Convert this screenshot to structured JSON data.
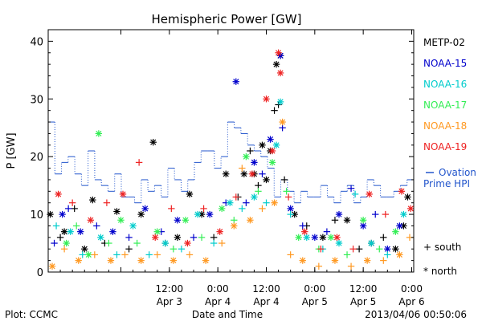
{
  "chart_data": {
    "type": "scatter",
    "title": "Hemispheric Power [GW]",
    "xlabel": "Date and Time",
    "ylabel": "P [GW]",
    "x_range": [
      "2013-04-02 06:00",
      "2013-04-06 00:30"
    ],
    "ylim": [
      0,
      42
    ],
    "y_ticks": [
      0,
      10,
      20,
      30,
      40
    ],
    "x_ticks": [
      {
        "t": "2013-04-03 00:00",
        "label": ""
      },
      {
        "t": "2013-04-03 12:00",
        "label": "12:00",
        "sub": "Apr 3"
      },
      {
        "t": "2013-04-04 00:00",
        "label": "0:00",
        "sub": "Apr 4"
      },
      {
        "t": "2013-04-04 12:00",
        "label": "12:00",
        "sub": "Apr 4"
      },
      {
        "t": "2013-04-05 00:00",
        "label": "0:00",
        "sub": "Apr 5"
      },
      {
        "t": "2013-04-05 12:00",
        "label": "12:00",
        "sub": "Apr 5"
      },
      {
        "t": "2013-04-06 00:00",
        "label": "0:00",
        "sub": "Apr 6"
      }
    ],
    "grid": false,
    "legend_position": "right",
    "series": [
      {
        "name": "METP-02",
        "color": "#000000",
        "points": [
          [
            "2013-04-02 06:30",
            10,
            "north"
          ],
          [
            "2013-04-02 09:00",
            6,
            "south"
          ],
          [
            "2013-04-02 10:00",
            7,
            "north"
          ],
          [
            "2013-04-02 12:30",
            11,
            "south"
          ],
          [
            "2013-04-02 15:00",
            4,
            "north"
          ],
          [
            "2013-04-02 17:00",
            12.5,
            "north"
          ],
          [
            "2013-04-02 20:00",
            5,
            "south"
          ],
          [
            "2013-04-02 23:00",
            10.5,
            "north"
          ],
          [
            "2013-04-03 02:00",
            4,
            "south"
          ],
          [
            "2013-04-03 05:00",
            10,
            "north"
          ],
          [
            "2013-04-03 08:00",
            22.5,
            "north"
          ],
          [
            "2013-04-03 11:00",
            5,
            "south"
          ],
          [
            "2013-04-03 14:00",
            6,
            "north"
          ],
          [
            "2013-04-03 17:00",
            13.5,
            "north"
          ],
          [
            "2013-04-03 20:00",
            10,
            "north"
          ],
          [
            "2013-04-03 23:00",
            6,
            "south"
          ],
          [
            "2013-04-04 02:00",
            17,
            "north"
          ],
          [
            "2013-04-04 05:00",
            13,
            "south"
          ],
          [
            "2013-04-04 06:30",
            17,
            "north"
          ],
          [
            "2013-04-04 08:00",
            21,
            "south"
          ],
          [
            "2013-04-04 09:00",
            17,
            "north"
          ],
          [
            "2013-04-04 10:00",
            15,
            "south"
          ],
          [
            "2013-04-04 11:00",
            22,
            "north"
          ],
          [
            "2013-04-04 12:00",
            16,
            "north"
          ],
          [
            "2013-04-04 13:00",
            21,
            "north"
          ],
          [
            "2013-04-04 14:00",
            28,
            "south"
          ],
          [
            "2013-04-04 14:30",
            36,
            "north"
          ],
          [
            "2013-04-04 15:00",
            29,
            "south"
          ],
          [
            "2013-04-04 15:30",
            37.5,
            "north"
          ],
          [
            "2013-04-04 16:30",
            16,
            "south"
          ],
          [
            "2013-04-04 19:00",
            10,
            "north"
          ],
          [
            "2013-04-04 22:00",
            8,
            "south"
          ],
          [
            "2013-04-05 02:00",
            6,
            "north"
          ],
          [
            "2013-04-05 05:00",
            9,
            "south"
          ],
          [
            "2013-04-05 08:00",
            9,
            "north"
          ],
          [
            "2013-04-05 11:00",
            4,
            "south"
          ],
          [
            "2013-04-05 14:00",
            5,
            "north"
          ],
          [
            "2013-04-05 17:00",
            6,
            "south"
          ],
          [
            "2013-04-05 20:00",
            4,
            "north"
          ],
          [
            "2013-04-05 22:00",
            8,
            "north"
          ],
          [
            "2013-04-05 23:00",
            13,
            "north"
          ]
        ]
      },
      {
        "name": "NOAA-15",
        "color": "#0000cc",
        "points": [
          [
            "2013-04-02 07:30",
            5,
            "south"
          ],
          [
            "2013-04-02 09:30",
            10,
            "north"
          ],
          [
            "2013-04-02 11:00",
            11,
            "south"
          ],
          [
            "2013-04-02 14:00",
            7,
            "north"
          ],
          [
            "2013-04-02 18:00",
            8,
            "south"
          ],
          [
            "2013-04-02 22:00",
            7,
            "north"
          ],
          [
            "2013-04-03 02:00",
            6,
            "south"
          ],
          [
            "2013-04-03 06:00",
            11,
            "north"
          ],
          [
            "2013-04-03 10:00",
            7,
            "south"
          ],
          [
            "2013-04-03 14:00",
            9,
            "north"
          ],
          [
            "2013-04-03 18:00",
            6,
            "south"
          ],
          [
            "2013-04-03 22:00",
            10,
            "north"
          ],
          [
            "2013-04-04 02:00",
            12,
            "south"
          ],
          [
            "2013-04-04 04:30",
            33,
            "north"
          ],
          [
            "2013-04-04 07:00",
            12,
            "south"
          ],
          [
            "2013-04-04 09:00",
            19,
            "north"
          ],
          [
            "2013-04-04 11:00",
            17,
            "south"
          ],
          [
            "2013-04-04 13:00",
            23,
            "north"
          ],
          [
            "2013-04-04 15:30",
            37.5,
            "north"
          ],
          [
            "2013-04-04 16:00",
            25,
            "south"
          ],
          [
            "2013-04-04 18:00",
            11,
            "north"
          ],
          [
            "2013-04-04 21:00",
            8,
            "south"
          ],
          [
            "2013-04-05 00:00",
            6,
            "north"
          ],
          [
            "2013-04-05 03:00",
            7,
            "south"
          ],
          [
            "2013-04-05 06:00",
            10,
            "north"
          ],
          [
            "2013-04-05 09:00",
            14.5,
            "south"
          ],
          [
            "2013-04-05 12:00",
            8,
            "north"
          ],
          [
            "2013-04-05 15:00",
            10,
            "south"
          ],
          [
            "2013-04-05 18:00",
            4,
            "north"
          ],
          [
            "2013-04-05 21:00",
            8,
            "north"
          ]
        ]
      },
      {
        "name": "NOAA-16",
        "color": "#00cccc",
        "points": [
          [
            "2013-04-02 08:00",
            8,
            "south"
          ],
          [
            "2013-04-02 11:30",
            7,
            "north"
          ],
          [
            "2013-04-02 14:30",
            3,
            "south"
          ],
          [
            "2013-04-02 19:00",
            6,
            "north"
          ],
          [
            "2013-04-02 23:00",
            3,
            "south"
          ],
          [
            "2013-04-03 03:00",
            8,
            "north"
          ],
          [
            "2013-04-03 07:00",
            3,
            "south"
          ],
          [
            "2013-04-03 11:00",
            5,
            "north"
          ],
          [
            "2013-04-03 15:00",
            4,
            "south"
          ],
          [
            "2013-04-03 19:00",
            10,
            "north"
          ],
          [
            "2013-04-03 23:00",
            5,
            "south"
          ],
          [
            "2013-04-04 03:00",
            12,
            "north"
          ],
          [
            "2013-04-04 06:00",
            11,
            "south"
          ],
          [
            "2013-04-04 09:00",
            13,
            "north"
          ],
          [
            "2013-04-04 12:00",
            12,
            "south"
          ],
          [
            "2013-04-04 14:30",
            22,
            "north"
          ],
          [
            "2013-04-04 15:30",
            29.5,
            "north"
          ],
          [
            "2013-04-04 18:00",
            10,
            "south"
          ],
          [
            "2013-04-04 22:00",
            6,
            "north"
          ],
          [
            "2013-04-05 02:00",
            4,
            "south"
          ],
          [
            "2013-04-05 06:00",
            5,
            "north"
          ],
          [
            "2013-04-05 10:00",
            13.5,
            "south"
          ],
          [
            "2013-04-05 14:00",
            5,
            "north"
          ],
          [
            "2013-04-05 18:00",
            3,
            "south"
          ],
          [
            "2013-04-05 22:00",
            10,
            "north"
          ]
        ]
      },
      {
        "name": "NOAA-17",
        "color": "#33ee55",
        "points": [
          [
            "2013-04-02 10:30",
            5,
            "north"
          ],
          [
            "2013-04-02 13:00",
            8,
            "south"
          ],
          [
            "2013-04-02 16:00",
            3,
            "north"
          ],
          [
            "2013-04-02 18:30",
            24,
            "north"
          ],
          [
            "2013-04-02 21:00",
            5,
            "south"
          ],
          [
            "2013-04-03 00:00",
            9,
            "north"
          ],
          [
            "2013-04-03 04:00",
            5,
            "south"
          ],
          [
            "2013-04-03 09:00",
            7,
            "north"
          ],
          [
            "2013-04-03 13:00",
            4,
            "south"
          ],
          [
            "2013-04-03 16:00",
            9,
            "north"
          ],
          [
            "2013-04-03 20:00",
            6,
            "south"
          ],
          [
            "2013-04-04 01:00",
            11,
            "north"
          ],
          [
            "2013-04-04 04:00",
            9,
            "south"
          ],
          [
            "2013-04-04 07:00",
            20,
            "north"
          ],
          [
            "2013-04-04 10:00",
            14,
            "south"
          ],
          [
            "2013-04-04 13:30",
            19,
            "north"
          ],
          [
            "2013-04-04 17:00",
            14,
            "south"
          ],
          [
            "2013-04-04 20:00",
            6,
            "north"
          ],
          [
            "2013-04-05 01:00",
            4,
            "south"
          ],
          [
            "2013-04-05 04:00",
            6,
            "north"
          ],
          [
            "2013-04-05 08:00",
            3,
            "south"
          ],
          [
            "2013-04-05 12:00",
            9,
            "north"
          ],
          [
            "2013-04-05 16:00",
            4,
            "south"
          ],
          [
            "2013-04-05 20:00",
            7,
            "north"
          ]
        ]
      },
      {
        "name": "NOAA-18",
        "color": "#ff9922",
        "points": [
          [
            "2013-04-02 07:00",
            1,
            "north"
          ],
          [
            "2013-04-02 10:00",
            4,
            "south"
          ],
          [
            "2013-04-02 13:30",
            2,
            "north"
          ],
          [
            "2013-04-02 17:30",
            3,
            "south"
          ],
          [
            "2013-04-02 21:30",
            2,
            "north"
          ],
          [
            "2013-04-03 01:00",
            3,
            "south"
          ],
          [
            "2013-04-03 05:00",
            2,
            "north"
          ],
          [
            "2013-04-03 09:00",
            3,
            "south"
          ],
          [
            "2013-04-03 13:00",
            2,
            "north"
          ],
          [
            "2013-04-03 17:00",
            3,
            "south"
          ],
          [
            "2013-04-03 21:00",
            2,
            "north"
          ],
          [
            "2013-04-04 01:00",
            5,
            "south"
          ],
          [
            "2013-04-04 04:00",
            8,
            "north"
          ],
          [
            "2013-04-04 06:00",
            18,
            "south"
          ],
          [
            "2013-04-04 08:00",
            9,
            "north"
          ],
          [
            "2013-04-04 11:00",
            11,
            "south"
          ],
          [
            "2013-04-04 14:00",
            12,
            "north"
          ],
          [
            "2013-04-04 16:00",
            26,
            "north"
          ],
          [
            "2013-04-04 18:00",
            3,
            "south"
          ],
          [
            "2013-04-04 21:00",
            2,
            "north"
          ],
          [
            "2013-04-05 01:00",
            1,
            "south"
          ],
          [
            "2013-04-05 05:00",
            2,
            "north"
          ],
          [
            "2013-04-05 09:00",
            1,
            "south"
          ],
          [
            "2013-04-05 13:00",
            2,
            "north"
          ],
          [
            "2013-04-05 17:00",
            2,
            "south"
          ],
          [
            "2013-04-05 21:00",
            3,
            "north"
          ],
          [
            "2013-04-05 23:30",
            6,
            "south"
          ]
        ]
      },
      {
        "name": "NOAA-19",
        "color": "#ee2222",
        "points": [
          [
            "2013-04-02 08:30",
            13.5,
            "north"
          ],
          [
            "2013-04-02 12:00",
            12,
            "south"
          ],
          [
            "2013-04-02 16:30",
            9,
            "north"
          ],
          [
            "2013-04-02 20:30",
            12,
            "south"
          ],
          [
            "2013-04-03 00:30",
            13.5,
            "north"
          ],
          [
            "2013-04-03 04:30",
            19,
            "south"
          ],
          [
            "2013-04-03 08:30",
            6,
            "north"
          ],
          [
            "2013-04-03 12:30",
            11,
            "south"
          ],
          [
            "2013-04-03 16:30",
            5,
            "north"
          ],
          [
            "2013-04-03 20:30",
            11,
            "south"
          ],
          [
            "2013-04-04 00:30",
            7,
            "north"
          ],
          [
            "2013-04-04 04:30",
            13,
            "south"
          ],
          [
            "2013-04-04 08:30",
            17,
            "north"
          ],
          [
            "2013-04-04 12:00",
            30,
            "north"
          ],
          [
            "2013-04-04 13:30",
            21,
            "north"
          ],
          [
            "2013-04-04 15:00",
            38,
            "north"
          ],
          [
            "2013-04-04 15:30",
            34.5,
            "north"
          ],
          [
            "2013-04-04 17:30",
            13,
            "south"
          ],
          [
            "2013-04-04 21:30",
            7,
            "north"
          ],
          [
            "2013-04-05 01:30",
            4,
            "south"
          ],
          [
            "2013-04-05 05:30",
            6,
            "north"
          ],
          [
            "2013-04-05 09:30",
            4,
            "south"
          ],
          [
            "2013-04-05 13:30",
            13.5,
            "north"
          ],
          [
            "2013-04-05 17:30",
            10,
            "south"
          ],
          [
            "2013-04-05 21:30",
            14,
            "north"
          ],
          [
            "2013-04-05 23:45",
            11,
            "north"
          ]
        ]
      }
    ],
    "ovation": {
      "name": "Ovation Prime HPI",
      "color": "#2255cc",
      "step_values": [
        26,
        17,
        19,
        20,
        17,
        15,
        21,
        16,
        15,
        14,
        17,
        13,
        13,
        12,
        16,
        14,
        15,
        13,
        18,
        16,
        14,
        16,
        19,
        21,
        21,
        18,
        20,
        26,
        25,
        24,
        22,
        21,
        20,
        18,
        13,
        16,
        14,
        12,
        14,
        13,
        13,
        15,
        13,
        12,
        14,
        15,
        12,
        13,
        16,
        15,
        13,
        13,
        14,
        15,
        16
      ]
    },
    "symbol_legend": [
      {
        "symbol": "+",
        "label": "south"
      },
      {
        "symbol": "*",
        "label": "north"
      }
    ]
  },
  "header": {
    "title": "Hemispheric Power [GW]"
  },
  "footer": {
    "plot_credit": "Plot: CCMC",
    "x_axis_title": "Date and Time",
    "timestamp": "2013/04/06 00:50:06"
  },
  "legend": {
    "ovation_line1": "Ovation",
    "ovation_line2": "Prime HPI"
  }
}
